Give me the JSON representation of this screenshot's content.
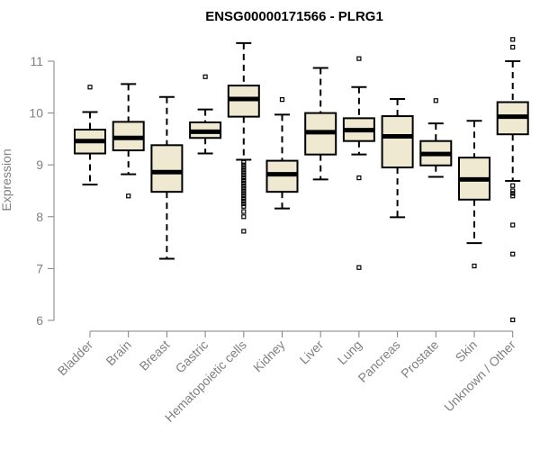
{
  "chart_data": {
    "type": "box",
    "title": "ENSG00000171566 - PLRG1",
    "xlabel": "",
    "ylabel": "Expression",
    "ylim": [
      6,
      11.5
    ],
    "yticks": [
      6,
      7,
      8,
      9,
      10,
      11
    ],
    "grid": false,
    "colors": {
      "box_fill": "#efe9d2",
      "stroke": "#000000",
      "axis": "#808080"
    },
    "categories": [
      "Bladder",
      "Brain",
      "Breast",
      "Gastric",
      "Hematopoietic cells",
      "Kidney",
      "Liver",
      "Lung",
      "Pancreas",
      "Prostate",
      "Skin",
      "Unknown / Other"
    ],
    "boxes": [
      {
        "category": "Bladder",
        "whisker_low": 8.62,
        "q1": 9.22,
        "median": 9.46,
        "q3": 9.68,
        "whisker_high": 10.02,
        "outliers": [
          10.5
        ]
      },
      {
        "category": "Brain",
        "whisker_low": 8.82,
        "q1": 9.28,
        "median": 9.52,
        "q3": 9.83,
        "whisker_high": 10.56,
        "outliers": [
          8.4
        ]
      },
      {
        "category": "Breast",
        "whisker_low": 7.19,
        "q1": 8.48,
        "median": 8.86,
        "q3": 9.38,
        "whisker_high": 10.31,
        "outliers": []
      },
      {
        "category": "Gastric",
        "whisker_low": 9.22,
        "q1": 9.52,
        "median": 9.64,
        "q3": 9.82,
        "whisker_high": 10.07,
        "outliers": [
          10.7
        ]
      },
      {
        "category": "Hematopoietic cells",
        "whisker_low": 9.1,
        "q1": 9.93,
        "median": 10.27,
        "q3": 10.53,
        "whisker_high": 11.35,
        "outliers": [
          9.05,
          9.0,
          8.95,
          8.9,
          8.85,
          8.8,
          8.75,
          8.7,
          8.65,
          8.6,
          8.55,
          8.5,
          8.45,
          8.4,
          8.35,
          8.3,
          8.25,
          8.2,
          8.1,
          8.0,
          7.72
        ]
      },
      {
        "category": "Kidney",
        "whisker_low": 8.16,
        "q1": 8.48,
        "median": 8.82,
        "q3": 9.08,
        "whisker_high": 9.97,
        "outliers": [
          10.26
        ]
      },
      {
        "category": "Liver",
        "whisker_low": 8.72,
        "q1": 9.2,
        "median": 9.63,
        "q3": 10.0,
        "whisker_high": 10.87,
        "outliers": []
      },
      {
        "category": "Lung",
        "whisker_low": 9.2,
        "q1": 9.46,
        "median": 9.67,
        "q3": 9.9,
        "whisker_high": 10.5,
        "outliers": [
          11.05,
          8.75,
          7.02
        ]
      },
      {
        "category": "Pancreas",
        "whisker_low": 7.99,
        "q1": 8.95,
        "median": 9.55,
        "q3": 9.94,
        "whisker_high": 10.27,
        "outliers": []
      },
      {
        "category": "Prostate",
        "whisker_low": 8.77,
        "q1": 8.99,
        "median": 9.21,
        "q3": 9.46,
        "whisker_high": 9.8,
        "outliers": [
          10.24
        ]
      },
      {
        "category": "Skin",
        "whisker_low": 7.49,
        "q1": 8.33,
        "median": 8.72,
        "q3": 9.14,
        "whisker_high": 9.85,
        "outliers": [
          7.05
        ]
      },
      {
        "category": "Unknown / Other",
        "whisker_low": 8.69,
        "q1": 9.59,
        "median": 9.93,
        "q3": 10.21,
        "whisker_high": 11.0,
        "outliers": [
          11.42,
          11.27,
          8.6,
          8.5,
          8.45,
          8.4,
          7.84,
          7.28,
          6.01
        ]
      }
    ]
  }
}
